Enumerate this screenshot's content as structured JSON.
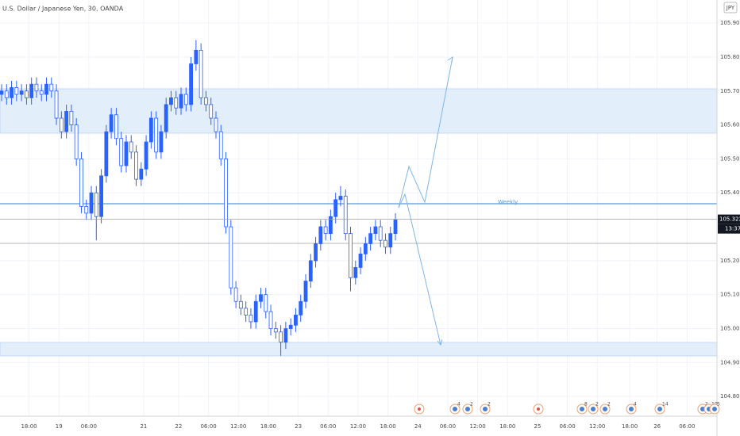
{
  "chart_data": {
    "type": "candlestick",
    "title": "U.S. Dollar / Japanese Yen, 30, OANDA",
    "currency": "JPY",
    "weekly_label": "Weekly",
    "countdown": "13:37",
    "last_price": 105.322,
    "up_color": "#2962ff",
    "down_color": "#ffffff",
    "grid": true,
    "open": [
      105.69,
      105.7,
      105.68,
      105.71,
      105.69,
      105.7,
      105.68,
      105.72,
      105.7,
      105.69,
      105.72,
      105.7,
      105.62,
      105.58,
      105.64,
      105.6,
      105.5,
      105.36,
      105.34,
      105.4,
      105.33,
      105.45,
      105.58,
      105.63,
      105.56,
      105.48,
      105.55,
      105.52,
      105.44,
      105.47,
      105.55,
      105.62,
      105.52,
      105.58,
      105.66,
      105.68,
      105.65,
      105.69,
      105.66,
      105.78,
      105.82,
      105.68,
      105.66,
      105.62,
      105.58,
      105.5,
      105.3,
      105.12,
      105.08,
      105.06,
      105.04,
      105.02,
      105.08,
      105.1,
      105.05,
      105.0,
      104.99,
      104.96,
      105.0,
      105.01,
      105.04,
      105.08,
      105.14,
      105.2,
      105.25,
      105.3,
      105.28,
      105.33,
      105.38,
      105.39,
      105.28,
      105.15,
      105.18,
      105.22,
      105.25,
      105.28,
      105.3,
      105.26,
      105.24,
      105.28
    ],
    "high": [
      105.72,
      105.72,
      105.73,
      105.73,
      105.72,
      105.72,
      105.74,
      105.74,
      105.72,
      105.74,
      105.74,
      105.72,
      105.64,
      105.66,
      105.66,
      105.62,
      105.52,
      105.38,
      105.42,
      105.42,
      105.47,
      105.6,
      105.65,
      105.65,
      105.58,
      105.57,
      105.57,
      105.54,
      105.49,
      105.57,
      105.64,
      105.64,
      105.6,
      105.68,
      105.7,
      105.7,
      105.71,
      105.71,
      105.8,
      105.85,
      105.84,
      105.7,
      105.68,
      105.64,
      105.6,
      105.52,
      105.32,
      105.14,
      105.1,
      105.08,
      105.06,
      105.1,
      105.12,
      105.12,
      105.07,
      105.02,
      105.01,
      105.02,
      105.03,
      105.06,
      105.1,
      105.16,
      105.22,
      105.27,
      105.32,
      105.32,
      105.35,
      105.4,
      105.42,
      105.41,
      105.3,
      105.2,
      105.24,
      105.27,
      105.3,
      105.32,
      105.32,
      105.28,
      105.3,
      105.34
    ],
    "low": [
      105.67,
      105.66,
      105.66,
      105.67,
      105.67,
      105.66,
      105.66,
      105.68,
      105.67,
      105.67,
      105.68,
      105.6,
      105.56,
      105.56,
      105.58,
      105.48,
      105.34,
      105.32,
      105.32,
      105.26,
      105.31,
      105.43,
      105.56,
      105.54,
      105.46,
      105.46,
      105.5,
      105.42,
      105.42,
      105.45,
      105.53,
      105.5,
      105.5,
      105.56,
      105.64,
      105.63,
      105.63,
      105.64,
      105.64,
      105.76,
      105.66,
      105.64,
      105.6,
      105.56,
      105.48,
      105.28,
      105.1,
      105.06,
      105.04,
      105.02,
      105.0,
      105.0,
      105.06,
      105.03,
      104.98,
      104.97,
      104.92,
      104.94,
      104.98,
      104.99,
      105.02,
      105.06,
      105.12,
      105.18,
      105.23,
      105.26,
      105.26,
      105.31,
      105.36,
      105.26,
      105.11,
      105.13,
      105.16,
      105.2,
      105.23,
      105.26,
      105.24,
      105.22,
      105.22,
      105.26
    ],
    "close": [
      105.7,
      105.68,
      105.71,
      105.69,
      105.7,
      105.68,
      105.72,
      105.7,
      105.69,
      105.72,
      105.7,
      105.62,
      105.58,
      105.64,
      105.6,
      105.5,
      105.36,
      105.34,
      105.4,
      105.33,
      105.45,
      105.58,
      105.63,
      105.56,
      105.48,
      105.55,
      105.52,
      105.44,
      105.47,
      105.55,
      105.62,
      105.52,
      105.58,
      105.66,
      105.68,
      105.65,
      105.69,
      105.66,
      105.78,
      105.82,
      105.68,
      105.66,
      105.62,
      105.58,
      105.5,
      105.3,
      105.12,
      105.08,
      105.06,
      105.04,
      105.02,
      105.08,
      105.1,
      105.05,
      105.0,
      104.99,
      104.96,
      105.0,
      105.01,
      105.04,
      105.08,
      105.14,
      105.2,
      105.25,
      105.3,
      105.28,
      105.33,
      105.38,
      105.39,
      105.28,
      105.15,
      105.18,
      105.22,
      105.25,
      105.28,
      105.3,
      105.26,
      105.24,
      105.28,
      105.32
    ],
    "xlim": [
      0,
      143.5
    ],
    "xticks": [
      {
        "value": 5.5,
        "label": "18:00"
      },
      {
        "value": 11.5,
        "label": "19"
      },
      {
        "value": 17.5,
        "label": "06:00"
      },
      {
        "value": 28.5,
        "label": "21"
      },
      {
        "value": 35.5,
        "label": "22"
      },
      {
        "value": 41.5,
        "label": "06:00"
      },
      {
        "value": 47.5,
        "label": "12:00"
      },
      {
        "value": 53.5,
        "label": "18:00"
      },
      {
        "value": 59.5,
        "label": "23"
      },
      {
        "value": 65.5,
        "label": "06:00"
      },
      {
        "value": 71.5,
        "label": "12:00"
      },
      {
        "value": 77.5,
        "label": "18:00"
      },
      {
        "value": 83.5,
        "label": "24"
      },
      {
        "value": 89.5,
        "label": "06:00"
      },
      {
        "value": 95.5,
        "label": "12:00"
      },
      {
        "value": 101.5,
        "label": "18:00"
      },
      {
        "value": 107.5,
        "label": "25"
      },
      {
        "value": 113.5,
        "label": "06:00"
      },
      {
        "value": 119.5,
        "label": "12:00"
      },
      {
        "value": 126,
        "label": "18:00"
      },
      {
        "value": 131.5,
        "label": "26"
      },
      {
        "value": 137.5,
        "label": "06:00"
      }
    ],
    "ylim": [
      104.742,
      105.968
    ],
    "yticks": [
      {
        "value": 104.8,
        "label": "104.800"
      },
      {
        "value": 104.9,
        "label": "104.900"
      },
      {
        "value": 105,
        "label": "105.000"
      },
      {
        "value": 105.1,
        "label": "105.100"
      },
      {
        "value": 105.2,
        "label": "105.200"
      },
      {
        "value": 105.4,
        "label": "105.400"
      },
      {
        "value": 105.5,
        "label": "105.500"
      },
      {
        "value": 105.6,
        "label": "105.600"
      },
      {
        "value": 105.7,
        "label": "105.700"
      },
      {
        "value": 105.8,
        "label": "105.800"
      },
      {
        "value": 105.9,
        "label": "105.900"
      }
    ],
    "events": [
      "4",
      "2",
      "2",
      "8",
      "2",
      "2",
      "4",
      "14",
      "2",
      "10",
      "5"
    ]
  }
}
